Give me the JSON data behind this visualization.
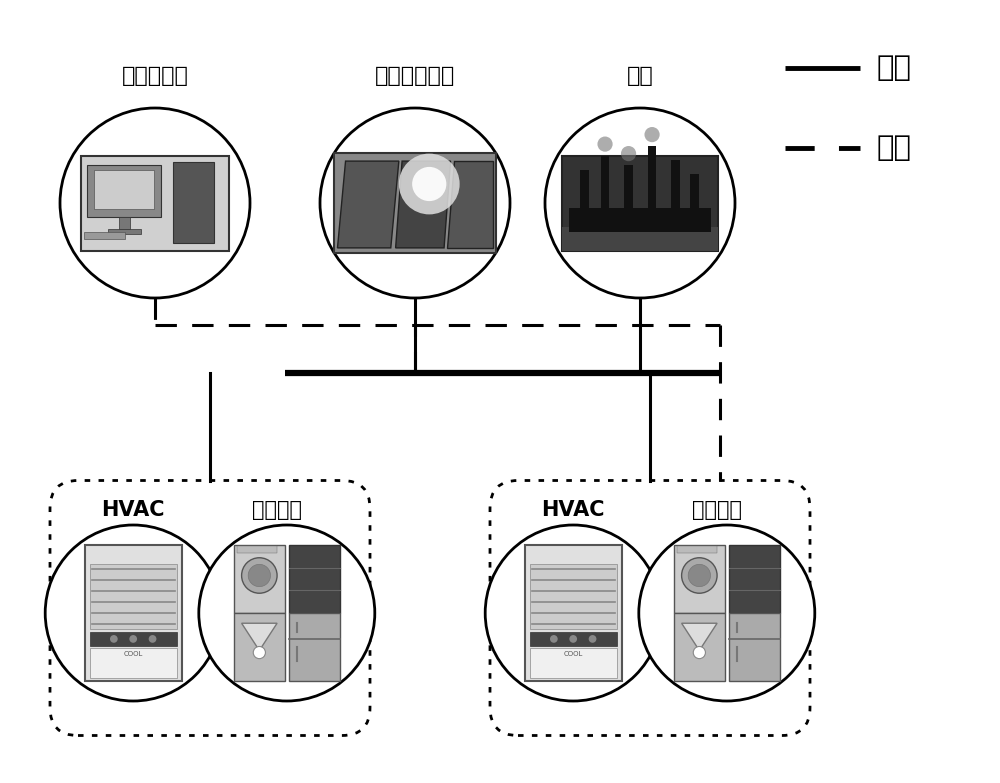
{
  "labels": {
    "central_controller": "中央控制器",
    "pv_unit": "光伏发电单元",
    "grid": "电网",
    "hvac": "HVAC",
    "baseline_load": "基线负荷",
    "power": "功率",
    "info": "信息"
  },
  "colors": {
    "black": "#000000",
    "white": "#ffffff",
    "bg": "#ffffff"
  },
  "fig_width": 10.0,
  "fig_height": 7.83,
  "dpi": 100
}
